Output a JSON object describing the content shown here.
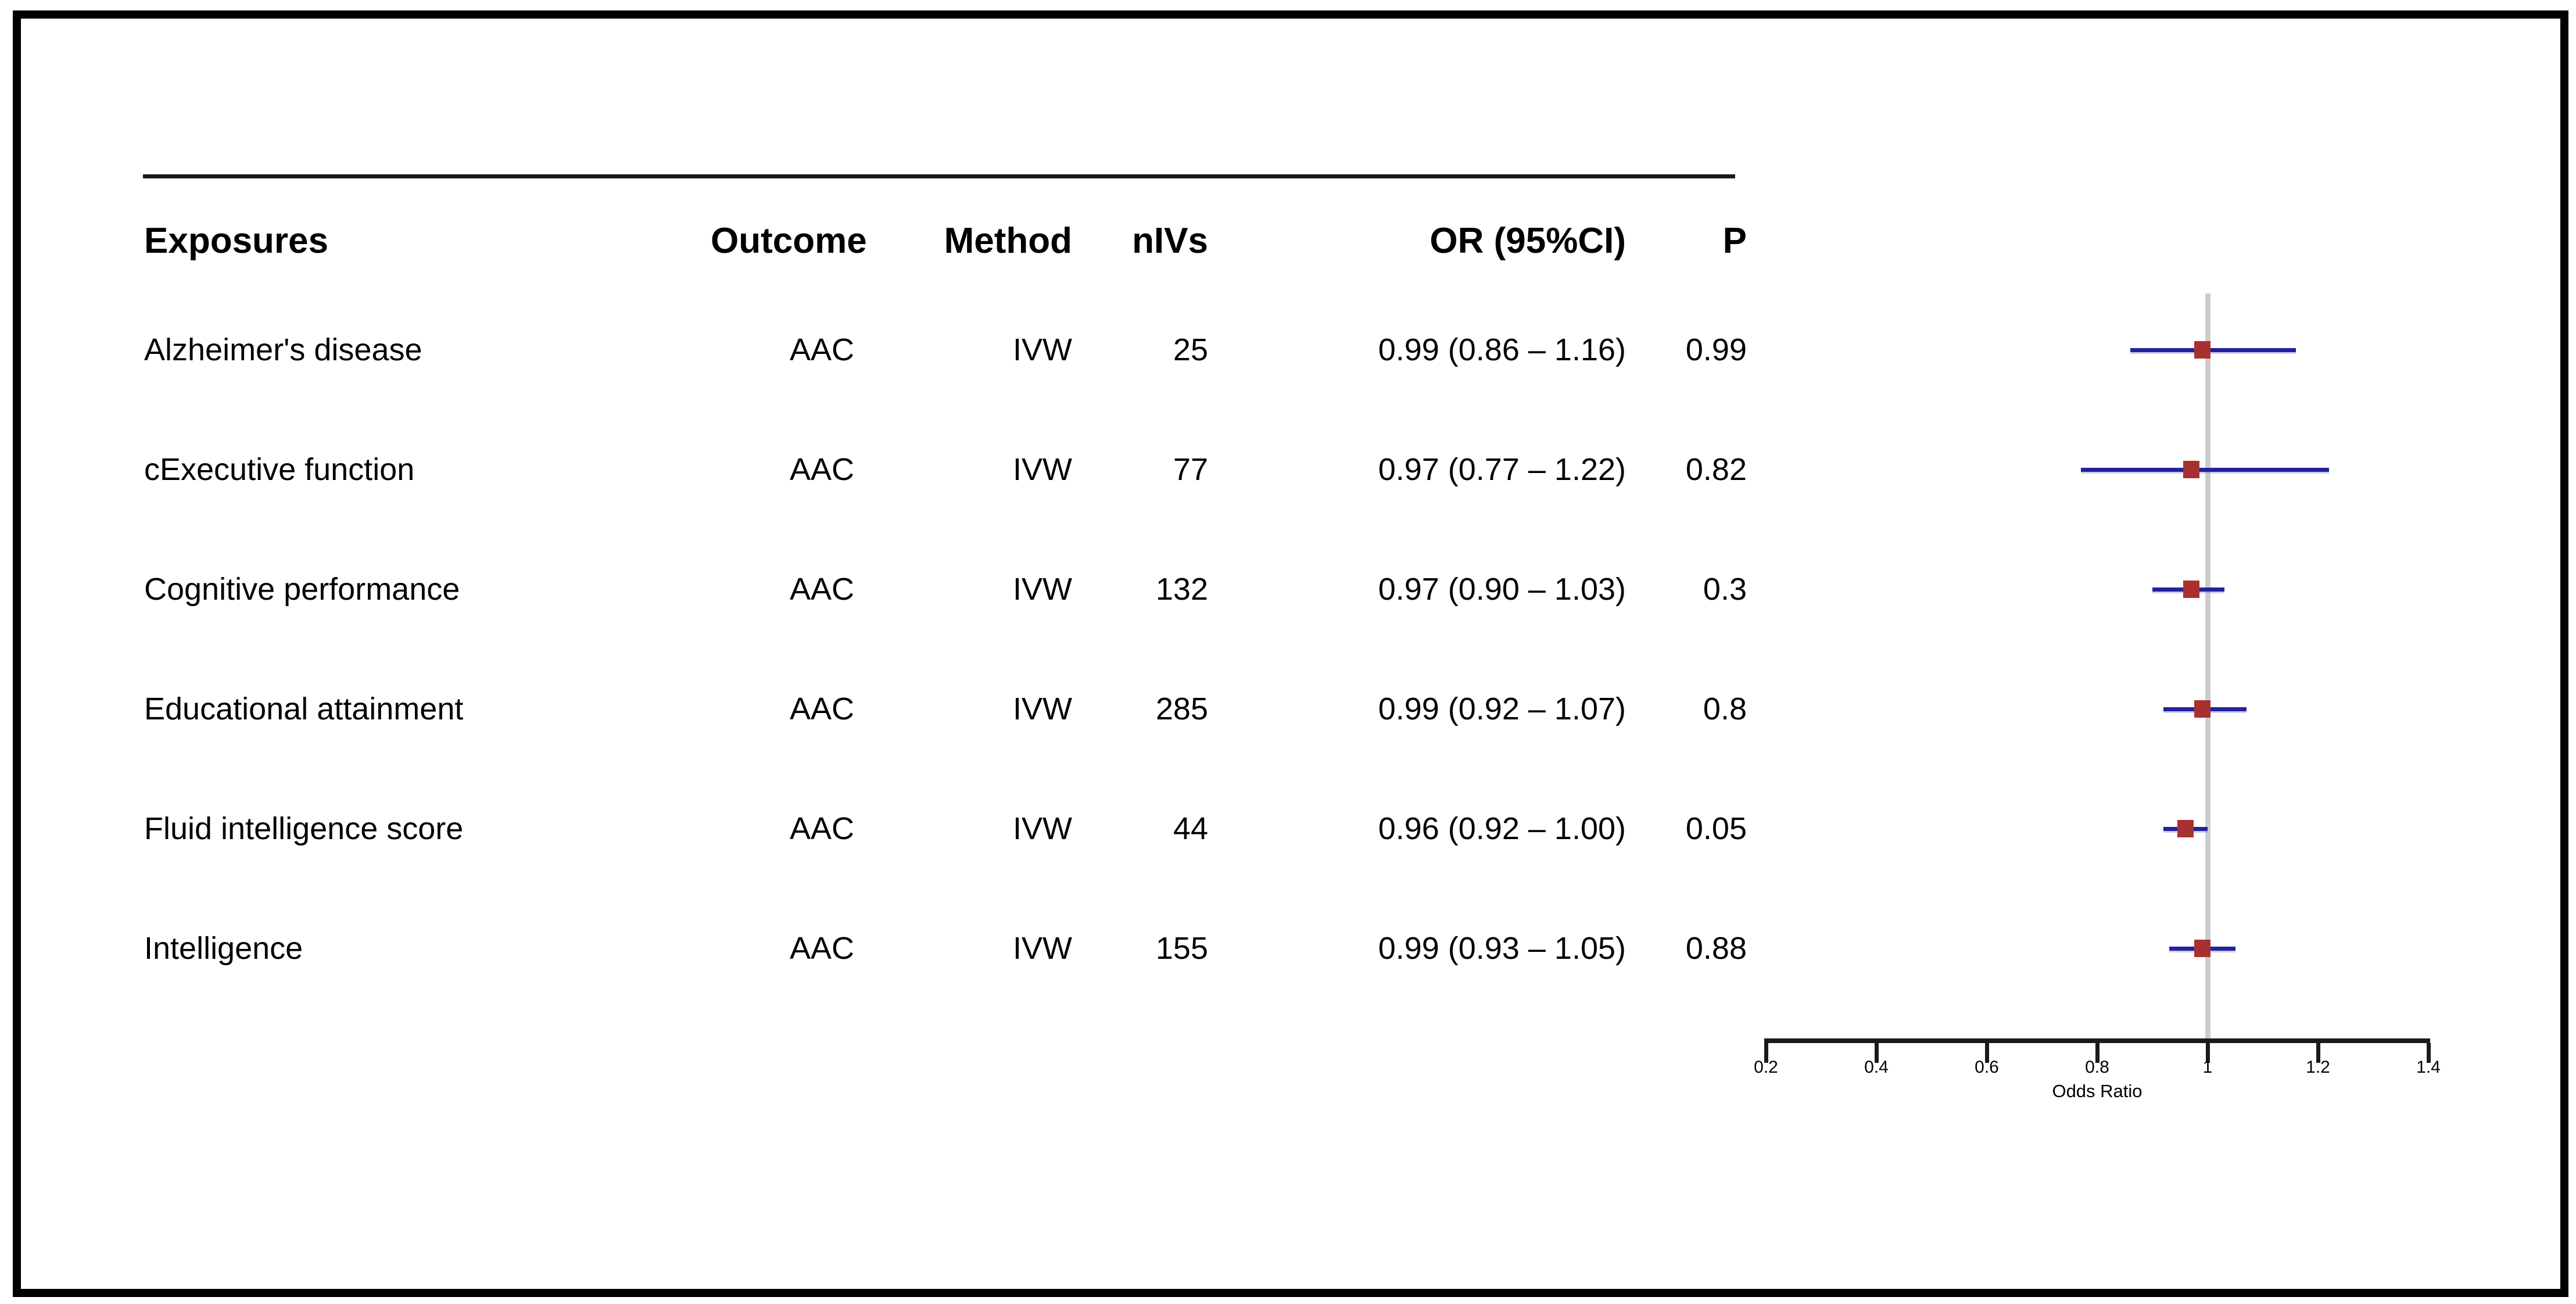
{
  "figure": {
    "table": {
      "headers": {
        "exposures": "Exposures",
        "outcome": "Outcome",
        "method": "Method",
        "nivs": "nIVs",
        "or_ci": "OR (95%CI)",
        "p": "P"
      },
      "rows": [
        {
          "exposure": "Alzheimer's disease",
          "outcome": "AAC",
          "method": "IVW",
          "nivs": "25",
          "or_ci": "0.99 (0.86 – 1.16)",
          "p": "0.99"
        },
        {
          "exposure": "cExecutive function",
          "outcome": "AAC",
          "method": "IVW",
          "nivs": "77",
          "or_ci": "0.97 (0.77 – 1.22)",
          "p": "0.82"
        },
        {
          "exposure": "Cognitive performance",
          "outcome": "AAC",
          "method": "IVW",
          "nivs": "132",
          "or_ci": "0.97 (0.90 – 1.03)",
          "p": "0.3"
        },
        {
          "exposure": "Educational attainment",
          "outcome": "AAC",
          "method": "IVW",
          "nivs": "285",
          "or_ci": "0.99 (0.92 – 1.07)",
          "p": "0.8"
        },
        {
          "exposure": "Fluid intelligence score",
          "outcome": "AAC",
          "method": "IVW",
          "nivs": "44",
          "or_ci": "0.96 (0.92 – 1.00)",
          "p": "0.05"
        },
        {
          "exposure": "Intelligence",
          "outcome": "AAC",
          "method": "IVW",
          "nivs": "155",
          "or_ci": "0.99 (0.93 – 1.05)",
          "p": "0.88"
        }
      ]
    }
  },
  "chart_data": {
    "type": "scatter",
    "variant": "forest-plot",
    "title": "",
    "xlabel": "Odds Ratio",
    "ylabel": "",
    "xlim": [
      0.2,
      1.4
    ],
    "xtick_values": [
      0.2,
      0.4,
      0.6,
      0.8,
      1,
      1.2,
      1.4
    ],
    "xtick_labels": [
      "0.2",
      "0.4",
      "0.6",
      "0.8",
      "1",
      "1.2",
      "1.4"
    ],
    "reference_line_x": 1,
    "grid": false,
    "legend": "none",
    "series": [
      {
        "name": "Alzheimer's disease",
        "or": 0.99,
        "ci_low": 0.86,
        "ci_high": 1.16
      },
      {
        "name": "cExecutive function",
        "or": 0.97,
        "ci_low": 0.77,
        "ci_high": 1.22
      },
      {
        "name": "Cognitive performance",
        "or": 0.97,
        "ci_low": 0.9,
        "ci_high": 1.03
      },
      {
        "name": "Educational attainment",
        "or": 0.99,
        "ci_low": 0.92,
        "ci_high": 1.07
      },
      {
        "name": "Fluid intelligence score",
        "or": 0.96,
        "ci_low": 0.92,
        "ci_high": 1.0
      },
      {
        "name": "Intelligence",
        "or": 0.99,
        "ci_low": 0.93,
        "ci_high": 1.05
      }
    ],
    "colors": {
      "ci_line": "#22229E",
      "marker": "#A93030",
      "reference_line": "#CCCCCC",
      "axis": "#1A1A1A",
      "text": "#000000"
    }
  }
}
